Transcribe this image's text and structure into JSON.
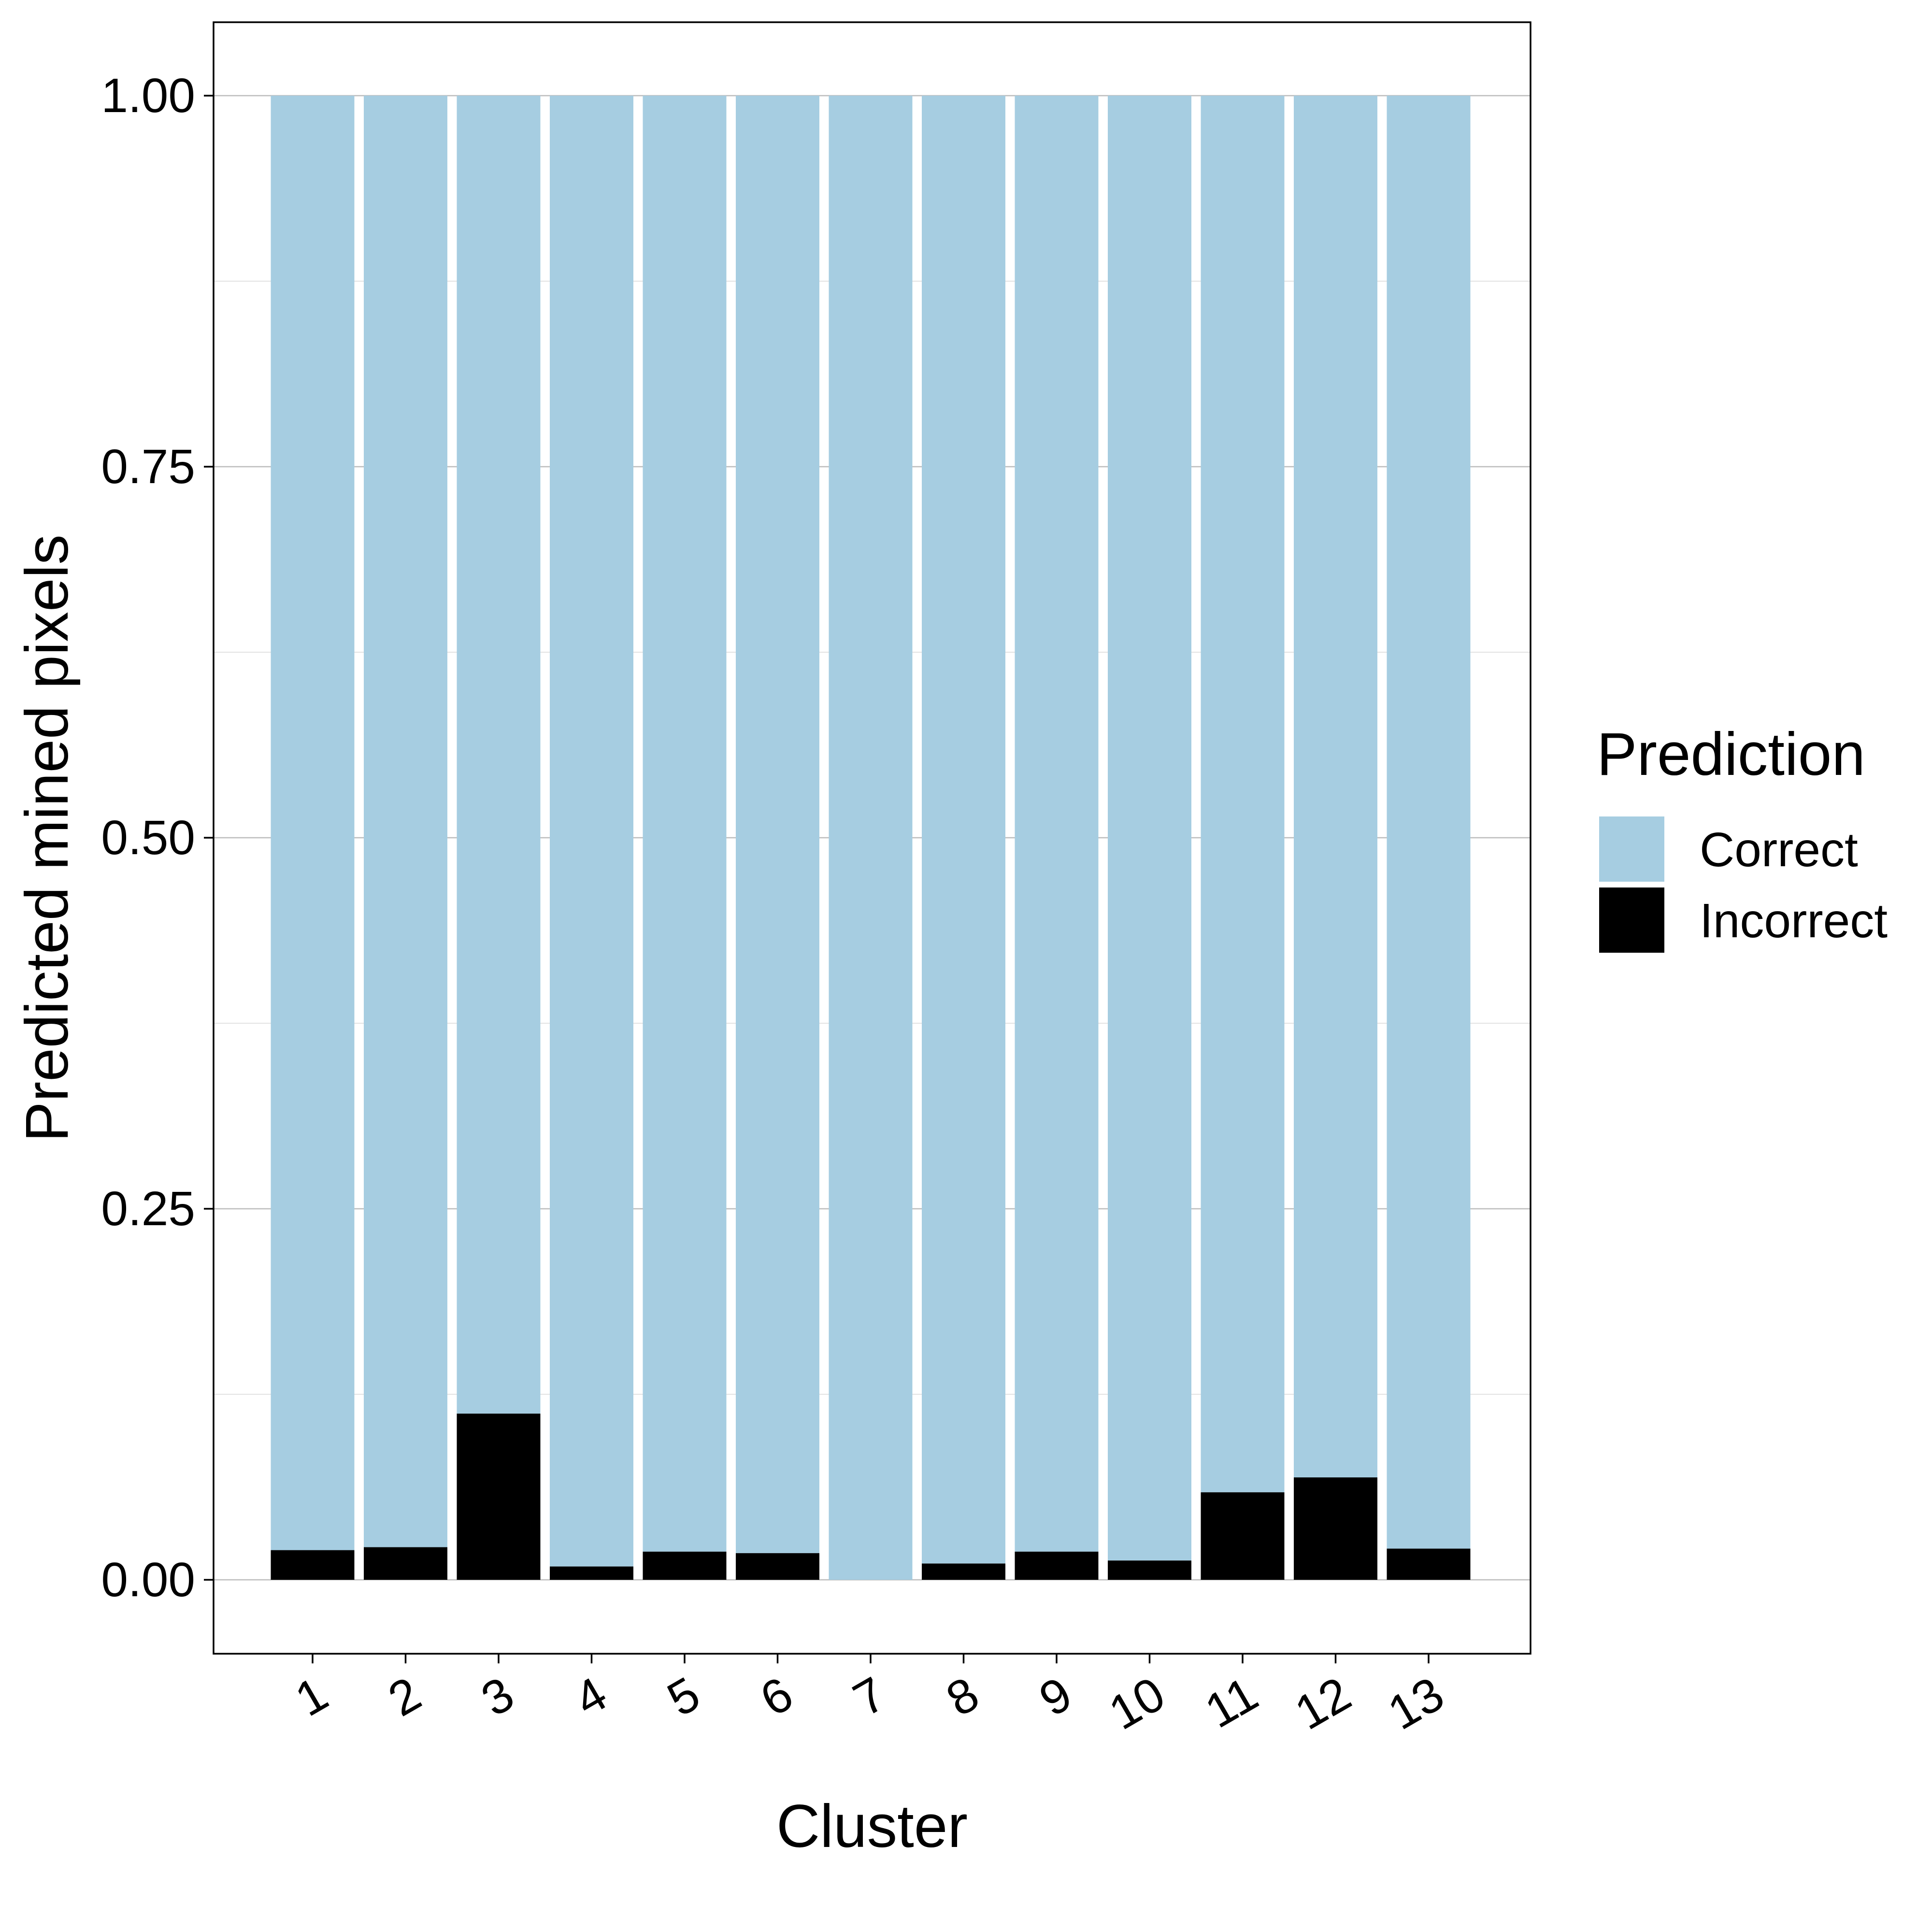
{
  "chart_data": {
    "type": "bar",
    "stacked": true,
    "xlabel": "Cluster",
    "ylabel": "Predicted mined pixels",
    "categories": [
      "1",
      "2",
      "3",
      "4",
      "5",
      "6",
      "7",
      "8",
      "9",
      "10",
      "11",
      "12",
      "13"
    ],
    "series": [
      {
        "name": "Incorrect",
        "color": "#000000",
        "values": [
          0.02,
          0.022,
          0.112,
          0.009,
          0.019,
          0.018,
          0.0,
          0.011,
          0.019,
          0.013,
          0.059,
          0.069,
          0.021
        ]
      },
      {
        "name": "Correct",
        "color": "#a6cde1",
        "values": [
          0.98,
          0.978,
          0.888,
          0.991,
          0.981,
          0.982,
          1.0,
          0.989,
          0.981,
          0.987,
          0.941,
          0.931,
          0.979
        ]
      }
    ],
    "ylim": [
      -0.05,
      1.05
    ],
    "yticks": [
      "0.00",
      "0.25",
      "0.50",
      "0.75",
      "1.00"
    ],
    "ytick_values": [
      0,
      0.25,
      0.5,
      0.75,
      1.0
    ],
    "grid": true,
    "legend": {
      "title": "Prediction",
      "position": "right",
      "entries": [
        {
          "label": "Correct",
          "color": "#a6cde1"
        },
        {
          "label": "Incorrect",
          "color": "#000000"
        }
      ]
    }
  }
}
